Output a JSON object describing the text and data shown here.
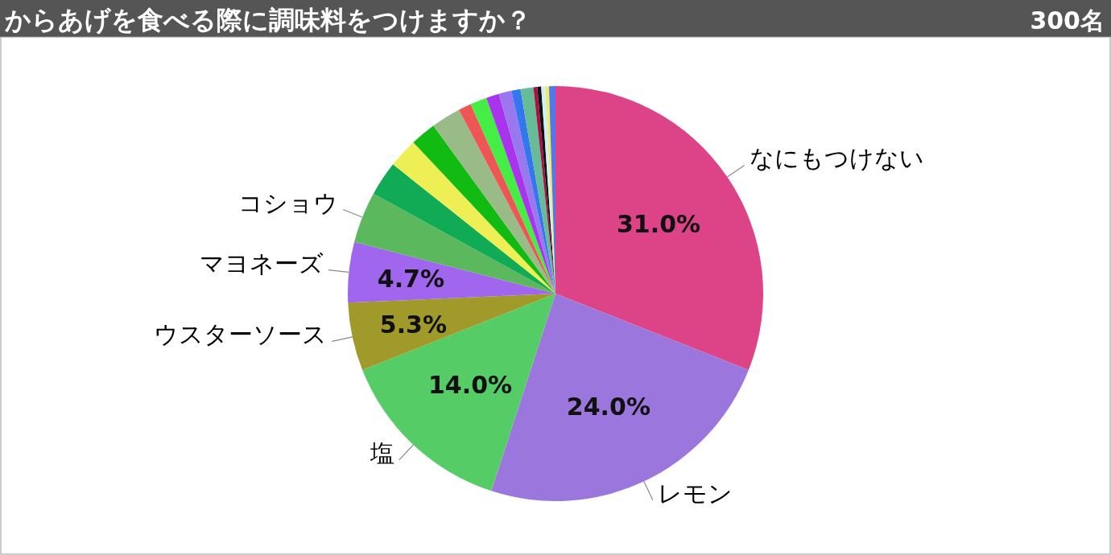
{
  "chart_data": {
    "type": "pie",
    "title": "からあげを食べる際に調味料をつけますか？",
    "subtitle": "300名",
    "categories": [
      "なにもつけない",
      "レモン",
      "塩",
      "ウスターソース",
      "マヨネーズ",
      "コショウ",
      null,
      null,
      null,
      null,
      null,
      null,
      null,
      null,
      null,
      null,
      null,
      null,
      null,
      null,
      null
    ],
    "values": [
      31.0,
      24.0,
      14.0,
      5.3,
      4.7,
      4.0,
      2.7,
      2.3,
      2.0,
      2.3,
      1.0,
      1.3,
      1.0,
      1.0,
      0.7,
      1.0,
      0.3,
      0.3,
      0.3,
      0.3,
      0.5
    ],
    "colors": [
      "#dd4488",
      "#9b77dd",
      "#55cc66",
      "#a09a2a",
      "#a066ee",
      "#5cb85c",
      "#11aa55",
      "#eeee55",
      "#11bb11",
      "#99bb88",
      "#ee5555",
      "#44ee44",
      "#aa33ee",
      "#9977ee",
      "#3377ee",
      "#66bb99",
      "#aa1144",
      "#111111",
      "#cceeff",
      "#eeee66",
      "#5577ee"
    ],
    "value_labels": [
      "31.0%",
      "24.0%",
      "14.0%",
      "5.3%",
      "4.7%",
      null,
      null,
      null,
      null,
      null,
      null,
      null,
      null,
      null,
      null,
      null,
      null,
      null,
      null,
      null,
      null
    ]
  }
}
